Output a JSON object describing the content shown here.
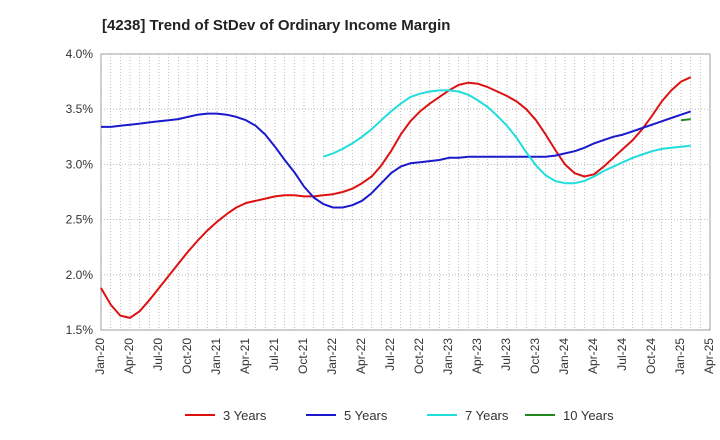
{
  "chart_data": {
    "type": "line",
    "title": "[4238]  Trend of StDev of Ordinary Income Margin",
    "xlabel": "",
    "ylabel": "",
    "ylim": [
      1.5,
      4.0
    ],
    "yticks": [
      1.5,
      2.0,
      2.5,
      3.0,
      3.5,
      4.0
    ],
    "ytick_labels": [
      "1.5%",
      "2.0%",
      "2.5%",
      "3.0%",
      "3.5%",
      "4.0%"
    ],
    "x_ticks": [
      "Jan-20",
      "Apr-20",
      "Jul-20",
      "Oct-20",
      "Jan-21",
      "Apr-21",
      "Jul-21",
      "Oct-21",
      "Jan-22",
      "Apr-22",
      "Jul-22",
      "Oct-22",
      "Jan-23",
      "Apr-23",
      "Jul-23",
      "Oct-23",
      "Jan-24",
      "Apr-24",
      "Jul-24",
      "Oct-24",
      "Jan-25",
      "Apr-25"
    ],
    "grid": true,
    "legend_position": "bottom",
    "series": [
      {
        "name": "3 Years",
        "color": "#dd1111",
        "points": [
          [
            "Jan-20",
            1.88
          ],
          [
            "Feb-20",
            1.73
          ],
          [
            "Mar-20",
            1.63
          ],
          [
            "Apr-20",
            1.61
          ],
          [
            "May-20",
            1.67
          ],
          [
            "Jun-20",
            1.77
          ],
          [
            "Jul-20",
            1.88
          ],
          [
            "Aug-20",
            1.99
          ],
          [
            "Sep-20",
            2.1
          ],
          [
            "Oct-20",
            2.21
          ],
          [
            "Nov-20",
            2.31
          ],
          [
            "Dec-20",
            2.4
          ],
          [
            "Jan-21",
            2.48
          ],
          [
            "Feb-21",
            2.55
          ],
          [
            "Mar-21",
            2.61
          ],
          [
            "Apr-21",
            2.65
          ],
          [
            "May-21",
            2.67
          ],
          [
            "Jun-21",
            2.69
          ],
          [
            "Jul-21",
            2.71
          ],
          [
            "Aug-21",
            2.72
          ],
          [
            "Sep-21",
            2.72
          ],
          [
            "Oct-21",
            2.71
          ],
          [
            "Nov-21",
            2.71
          ],
          [
            "Dec-21",
            2.72
          ],
          [
            "Jan-22",
            2.73
          ],
          [
            "Feb-22",
            2.75
          ],
          [
            "Mar-22",
            2.78
          ],
          [
            "Apr-22",
            2.83
          ],
          [
            "May-22",
            2.89
          ],
          [
            "Jun-22",
            2.99
          ],
          [
            "Jul-22",
            3.12
          ],
          [
            "Aug-22",
            3.27
          ],
          [
            "Sep-22",
            3.39
          ],
          [
            "Oct-22",
            3.48
          ],
          [
            "Nov-22",
            3.55
          ],
          [
            "Dec-22",
            3.61
          ],
          [
            "Jan-23",
            3.67
          ],
          [
            "Feb-23",
            3.72
          ],
          [
            "Mar-23",
            3.74
          ],
          [
            "Apr-23",
            3.73
          ],
          [
            "May-23",
            3.7
          ],
          [
            "Jun-23",
            3.66
          ],
          [
            "Jul-23",
            3.62
          ],
          [
            "Aug-23",
            3.57
          ],
          [
            "Sep-23",
            3.5
          ],
          [
            "Oct-23",
            3.4
          ],
          [
            "Nov-23",
            3.27
          ],
          [
            "Dec-23",
            3.13
          ],
          [
            "Jan-24",
            3.0
          ],
          [
            "Feb-24",
            2.92
          ],
          [
            "Mar-24",
            2.89
          ],
          [
            "Apr-24",
            2.91
          ],
          [
            "May-24",
            2.98
          ],
          [
            "Jun-24",
            3.06
          ],
          [
            "Jul-24",
            3.14
          ],
          [
            "Aug-24",
            3.22
          ],
          [
            "Sep-24",
            3.32
          ],
          [
            "Oct-24",
            3.44
          ],
          [
            "Nov-24",
            3.57
          ],
          [
            "Dec-24",
            3.67
          ],
          [
            "Jan-25",
            3.75
          ],
          [
            "Feb-25",
            3.79
          ]
        ]
      },
      {
        "name": "5 Years",
        "color": "#1a1acc",
        "points": [
          [
            "Jan-20",
            3.34
          ],
          [
            "Feb-20",
            3.34
          ],
          [
            "Mar-20",
            3.35
          ],
          [
            "Apr-20",
            3.36
          ],
          [
            "May-20",
            3.37
          ],
          [
            "Jun-20",
            3.38
          ],
          [
            "Jul-20",
            3.39
          ],
          [
            "Aug-20",
            3.4
          ],
          [
            "Sep-20",
            3.41
          ],
          [
            "Oct-20",
            3.43
          ],
          [
            "Nov-20",
            3.45
          ],
          [
            "Dec-20",
            3.46
          ],
          [
            "Jan-21",
            3.46
          ],
          [
            "Feb-21",
            3.45
          ],
          [
            "Mar-21",
            3.43
          ],
          [
            "Apr-21",
            3.4
          ],
          [
            "May-21",
            3.35
          ],
          [
            "Jun-21",
            3.27
          ],
          [
            "Jul-21",
            3.16
          ],
          [
            "Aug-21",
            3.04
          ],
          [
            "Sep-21",
            2.93
          ],
          [
            "Oct-21",
            2.8
          ],
          [
            "Nov-21",
            2.7
          ],
          [
            "Dec-21",
            2.64
          ],
          [
            "Jan-22",
            2.61
          ],
          [
            "Feb-22",
            2.61
          ],
          [
            "Mar-22",
            2.63
          ],
          [
            "Apr-22",
            2.67
          ],
          [
            "May-22",
            2.74
          ],
          [
            "Jun-22",
            2.83
          ],
          [
            "Jul-22",
            2.92
          ],
          [
            "Aug-22",
            2.98
          ],
          [
            "Sep-22",
            3.01
          ],
          [
            "Oct-22",
            3.02
          ],
          [
            "Nov-22",
            3.03
          ],
          [
            "Dec-22",
            3.04
          ],
          [
            "Jan-23",
            3.06
          ],
          [
            "Feb-23",
            3.06
          ],
          [
            "Mar-23",
            3.07
          ],
          [
            "Apr-23",
            3.07
          ],
          [
            "May-23",
            3.07
          ],
          [
            "Jun-23",
            3.07
          ],
          [
            "Jul-23",
            3.07
          ],
          [
            "Aug-23",
            3.07
          ],
          [
            "Sep-23",
            3.07
          ],
          [
            "Oct-23",
            3.07
          ],
          [
            "Nov-23",
            3.07
          ],
          [
            "Dec-23",
            3.08
          ],
          [
            "Jan-24",
            3.1
          ],
          [
            "Feb-24",
            3.12
          ],
          [
            "Mar-24",
            3.15
          ],
          [
            "Apr-24",
            3.19
          ],
          [
            "May-24",
            3.22
          ],
          [
            "Jun-24",
            3.25
          ],
          [
            "Jul-24",
            3.27
          ],
          [
            "Aug-24",
            3.3
          ],
          [
            "Sep-24",
            3.33
          ],
          [
            "Oct-24",
            3.36
          ],
          [
            "Nov-24",
            3.39
          ],
          [
            "Dec-24",
            3.42
          ],
          [
            "Jan-25",
            3.45
          ],
          [
            "Feb-25",
            3.48
          ]
        ]
      },
      {
        "name": "7 Years",
        "color": "#22dddd",
        "points": [
          [
            "Dec-21",
            3.07
          ],
          [
            "Jan-22",
            3.1
          ],
          [
            "Feb-22",
            3.14
          ],
          [
            "Mar-22",
            3.19
          ],
          [
            "Apr-22",
            3.25
          ],
          [
            "May-22",
            3.32
          ],
          [
            "Jun-22",
            3.4
          ],
          [
            "Jul-22",
            3.48
          ],
          [
            "Aug-22",
            3.55
          ],
          [
            "Sep-22",
            3.61
          ],
          [
            "Oct-22",
            3.64
          ],
          [
            "Nov-22",
            3.66
          ],
          [
            "Dec-22",
            3.67
          ],
          [
            "Jan-23",
            3.67
          ],
          [
            "Feb-23",
            3.66
          ],
          [
            "Mar-23",
            3.63
          ],
          [
            "Apr-23",
            3.58
          ],
          [
            "May-23",
            3.52
          ],
          [
            "Jun-23",
            3.44
          ],
          [
            "Jul-23",
            3.35
          ],
          [
            "Aug-23",
            3.24
          ],
          [
            "Sep-23",
            3.11
          ],
          [
            "Oct-23",
            2.99
          ],
          [
            "Nov-23",
            2.9
          ],
          [
            "Dec-23",
            2.85
          ],
          [
            "Jan-24",
            2.83
          ],
          [
            "Feb-24",
            2.83
          ],
          [
            "Mar-24",
            2.85
          ],
          [
            "Apr-24",
            2.89
          ],
          [
            "May-24",
            2.94
          ],
          [
            "Jun-24",
            2.98
          ],
          [
            "Jul-24",
            3.02
          ],
          [
            "Aug-24",
            3.06
          ],
          [
            "Sep-24",
            3.09
          ],
          [
            "Oct-24",
            3.12
          ],
          [
            "Nov-24",
            3.14
          ],
          [
            "Dec-24",
            3.15
          ],
          [
            "Jan-25",
            3.16
          ],
          [
            "Feb-25",
            3.17
          ]
        ]
      },
      {
        "name": "10 Years",
        "color": "#228822",
        "points": [
          [
            "Jan-25",
            3.4
          ],
          [
            "Feb-25",
            3.41
          ]
        ]
      }
    ]
  }
}
